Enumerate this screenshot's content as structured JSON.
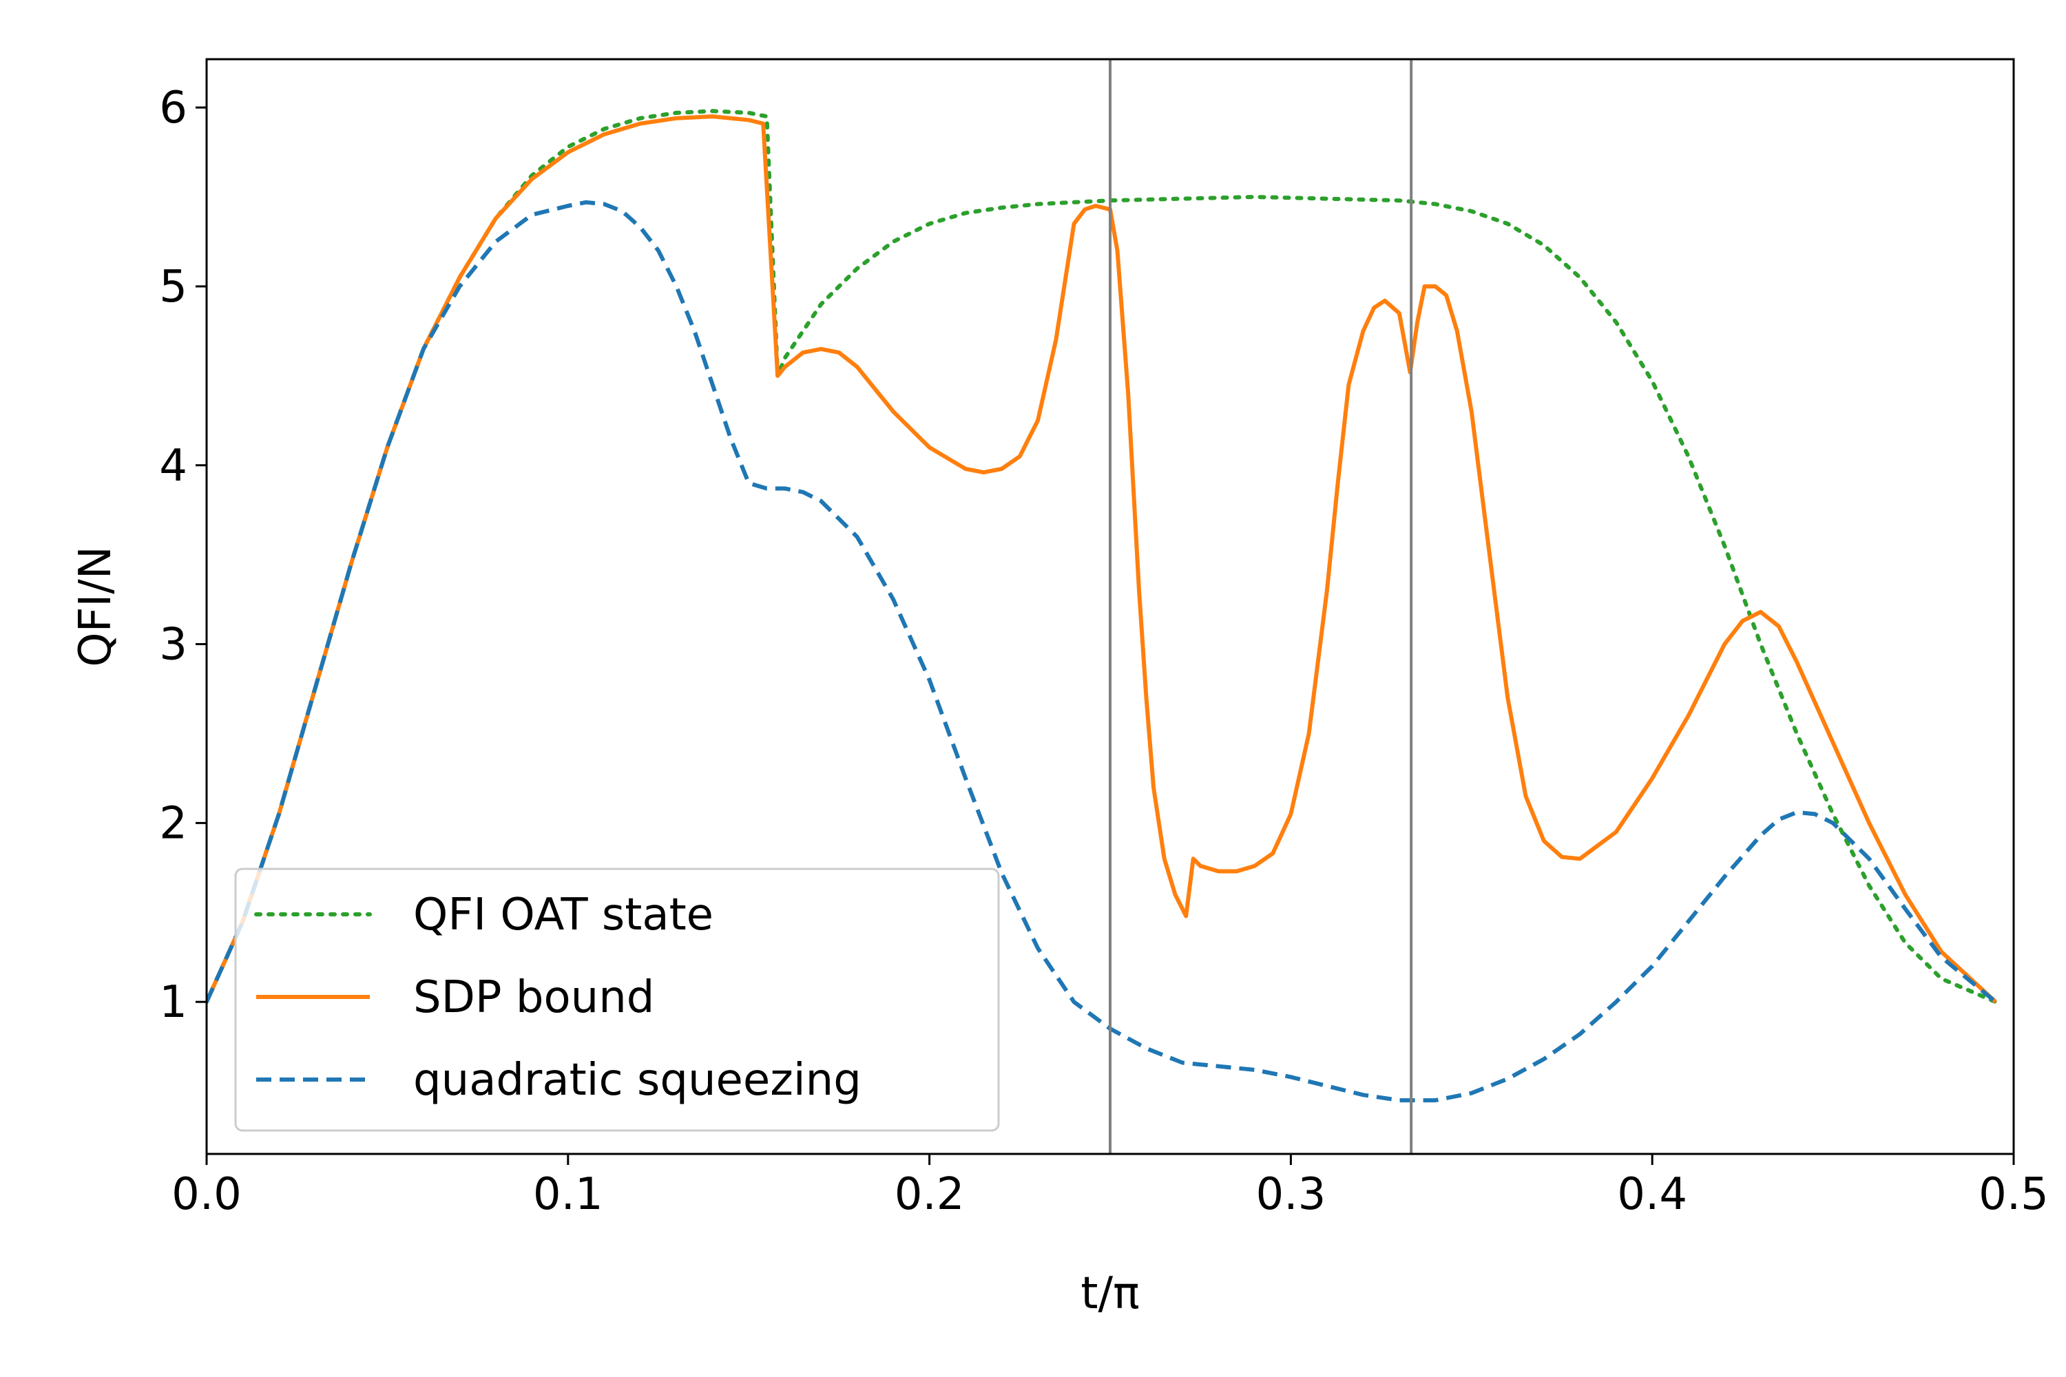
{
  "chart_data": {
    "type": "line",
    "xlabel": "t/π",
    "ylabel": "QFI/N",
    "xlim": [
      0.0,
      0.5
    ],
    "ylim": [
      0.15,
      6.27
    ],
    "x_ticks": [
      {
        "value": 0.0,
        "label": "0.0"
      },
      {
        "value": 0.1,
        "label": "0.1"
      },
      {
        "value": 0.2,
        "label": "0.2"
      },
      {
        "value": 0.3,
        "label": "0.3"
      },
      {
        "value": 0.4,
        "label": "0.4"
      },
      {
        "value": 0.5,
        "label": "0.5"
      }
    ],
    "y_ticks": [
      {
        "value": 1,
        "label": "1"
      },
      {
        "value": 2,
        "label": "2"
      },
      {
        "value": 3,
        "label": "3"
      },
      {
        "value": 4,
        "label": "4"
      },
      {
        "value": 5,
        "label": "5"
      },
      {
        "value": 6,
        "label": "6"
      }
    ],
    "vertical_lines": [
      0.25,
      0.3333
    ],
    "grid": false,
    "legend_position": "lower-left",
    "series": [
      {
        "name": "QFI OAT state",
        "color": "#2ca02c",
        "style": "dotted",
        "x": [
          0.0,
          0.01,
          0.02,
          0.03,
          0.04,
          0.05,
          0.06,
          0.07,
          0.08,
          0.09,
          0.1,
          0.11,
          0.12,
          0.13,
          0.14,
          0.15,
          0.155,
          0.158,
          0.16,
          0.17,
          0.18,
          0.19,
          0.2,
          0.21,
          0.22,
          0.23,
          0.24,
          0.25,
          0.27,
          0.29,
          0.31,
          0.33,
          0.34,
          0.35,
          0.36,
          0.37,
          0.38,
          0.39,
          0.4,
          0.41,
          0.42,
          0.43,
          0.44,
          0.45,
          0.46,
          0.47,
          0.48,
          0.495
        ],
        "y": [
          1.0,
          1.45,
          2.05,
          2.75,
          3.45,
          4.1,
          4.65,
          5.05,
          5.38,
          5.62,
          5.78,
          5.88,
          5.94,
          5.97,
          5.98,
          5.97,
          5.95,
          4.5,
          4.6,
          4.9,
          5.1,
          5.25,
          5.35,
          5.41,
          5.44,
          5.46,
          5.47,
          5.48,
          5.49,
          5.5,
          5.49,
          5.48,
          5.46,
          5.42,
          5.35,
          5.23,
          5.05,
          4.8,
          4.47,
          4.05,
          3.55,
          3.0,
          2.5,
          2.05,
          1.65,
          1.33,
          1.13,
          1.0
        ]
      },
      {
        "name": "SDP bound",
        "color": "#ff7f0e",
        "style": "solid",
        "x": [
          0.0,
          0.01,
          0.02,
          0.03,
          0.04,
          0.05,
          0.06,
          0.07,
          0.08,
          0.09,
          0.1,
          0.11,
          0.12,
          0.13,
          0.14,
          0.15,
          0.154,
          0.158,
          0.16,
          0.165,
          0.17,
          0.175,
          0.18,
          0.19,
          0.2,
          0.21,
          0.215,
          0.22,
          0.225,
          0.23,
          0.235,
          0.24,
          0.243,
          0.246,
          0.25,
          0.252,
          0.255,
          0.258,
          0.26,
          0.262,
          0.265,
          0.268,
          0.271,
          0.273,
          0.275,
          0.28,
          0.285,
          0.29,
          0.295,
          0.3,
          0.305,
          0.31,
          0.313,
          0.316,
          0.32,
          0.323,
          0.326,
          0.33,
          0.333,
          0.335,
          0.337,
          0.34,
          0.343,
          0.346,
          0.35,
          0.355,
          0.36,
          0.365,
          0.37,
          0.375,
          0.38,
          0.39,
          0.4,
          0.41,
          0.42,
          0.425,
          0.43,
          0.435,
          0.44,
          0.45,
          0.46,
          0.47,
          0.48,
          0.495
        ],
        "y": [
          1.0,
          1.45,
          2.05,
          2.75,
          3.45,
          4.1,
          4.65,
          5.05,
          5.38,
          5.6,
          5.75,
          5.85,
          5.91,
          5.94,
          5.95,
          5.93,
          5.91,
          4.5,
          4.55,
          4.63,
          4.65,
          4.63,
          4.55,
          4.3,
          4.1,
          3.98,
          3.96,
          3.98,
          4.05,
          4.25,
          4.7,
          5.35,
          5.43,
          5.45,
          5.43,
          5.2,
          4.4,
          3.3,
          2.7,
          2.2,
          1.8,
          1.6,
          1.48,
          1.8,
          1.76,
          1.73,
          1.73,
          1.76,
          1.83,
          2.05,
          2.5,
          3.3,
          3.9,
          4.45,
          4.75,
          4.88,
          4.92,
          4.85,
          4.52,
          4.8,
          5.0,
          5.0,
          4.95,
          4.75,
          4.3,
          3.5,
          2.7,
          2.15,
          1.9,
          1.81,
          1.8,
          1.95,
          2.25,
          2.6,
          3.0,
          3.13,
          3.18,
          3.1,
          2.9,
          2.45,
          2.0,
          1.6,
          1.28,
          1.0
        ]
      },
      {
        "name": "quadratic squeezing",
        "color": "#1f77b4",
        "style": "dashed",
        "x": [
          0.0,
          0.01,
          0.02,
          0.03,
          0.04,
          0.05,
          0.06,
          0.07,
          0.08,
          0.09,
          0.1,
          0.105,
          0.11,
          0.115,
          0.12,
          0.125,
          0.13,
          0.135,
          0.14,
          0.145,
          0.15,
          0.155,
          0.16,
          0.165,
          0.17,
          0.18,
          0.19,
          0.2,
          0.21,
          0.22,
          0.23,
          0.24,
          0.25,
          0.26,
          0.27,
          0.28,
          0.29,
          0.3,
          0.31,
          0.32,
          0.33,
          0.34,
          0.35,
          0.36,
          0.37,
          0.38,
          0.39,
          0.4,
          0.41,
          0.42,
          0.43,
          0.435,
          0.44,
          0.445,
          0.45,
          0.46,
          0.47,
          0.48,
          0.495
        ],
        "y": [
          1.0,
          1.45,
          2.05,
          2.75,
          3.45,
          4.1,
          4.65,
          5.0,
          5.25,
          5.4,
          5.45,
          5.47,
          5.46,
          5.42,
          5.33,
          5.2,
          5.0,
          4.75,
          4.45,
          4.15,
          3.9,
          3.87,
          3.87,
          3.85,
          3.8,
          3.6,
          3.25,
          2.8,
          2.25,
          1.72,
          1.3,
          1.0,
          0.85,
          0.74,
          0.66,
          0.64,
          0.62,
          0.58,
          0.53,
          0.48,
          0.45,
          0.45,
          0.49,
          0.57,
          0.68,
          0.82,
          1.0,
          1.2,
          1.45,
          1.7,
          1.93,
          2.02,
          2.06,
          2.05,
          2.0,
          1.8,
          1.52,
          1.25,
          1.0
        ]
      }
    ]
  }
}
